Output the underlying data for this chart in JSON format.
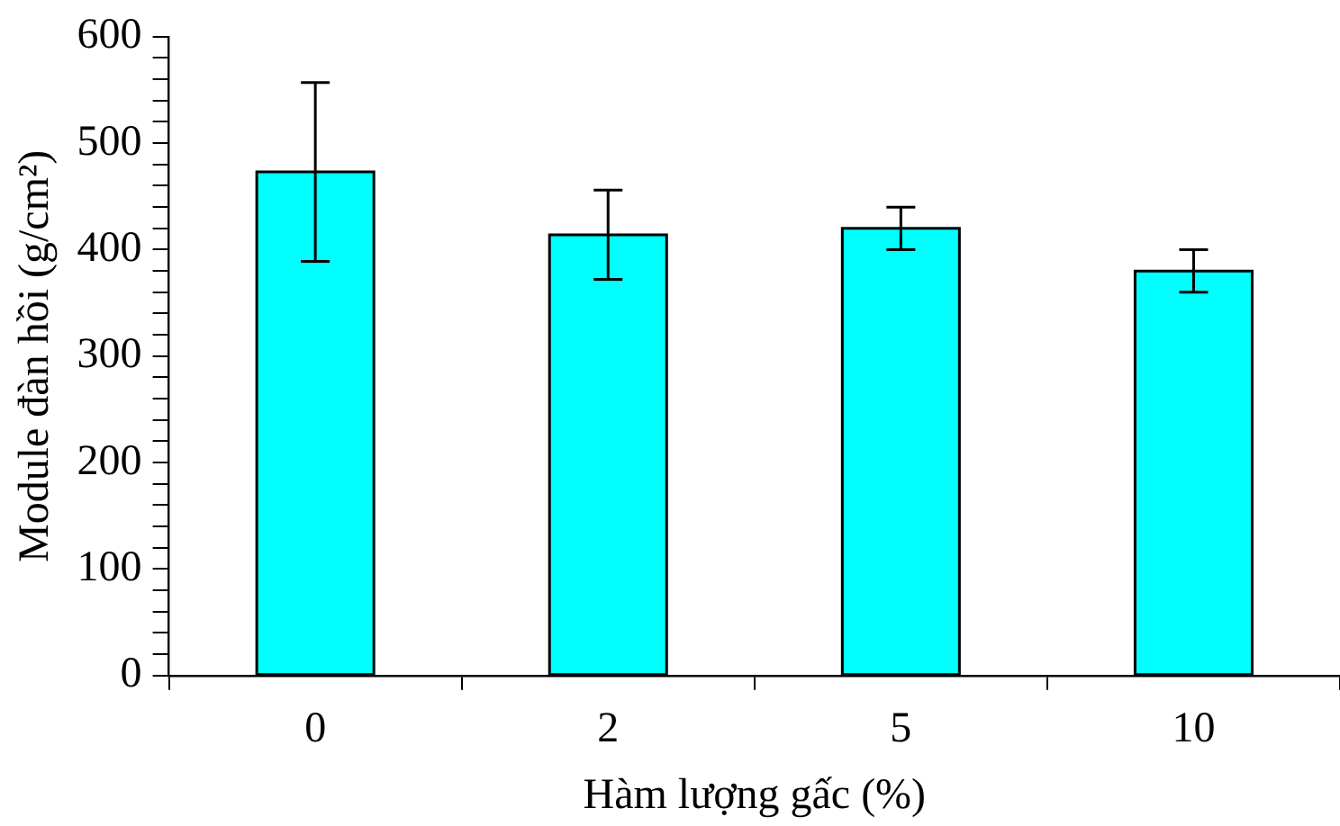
{
  "chart_data": {
    "type": "bar",
    "xlabel": "Hàm lượng gấc (%)",
    "ylabel": "Module đàn hồi (g/cm²)",
    "categories": [
      "0",
      "2",
      "5",
      "10"
    ],
    "values": [
      473,
      414,
      420,
      380
    ],
    "errors": [
      84,
      42,
      20,
      20
    ],
    "color": "#00ffff",
    "ylim": [
      0,
      600
    ],
    "yticks": [
      0,
      {
        "value": 20,
        "label": null
      },
      {
        "value": 40,
        "label": null
      },
      {
        "value": 60,
        "label": null
      },
      {
        "value": 80,
        "label": null
      },
      100,
      {
        "value": 120,
        "label": null
      },
      {
        "value": 140,
        "label": null
      },
      {
        "value": 160,
        "label": null
      },
      {
        "value": 180,
        "label": null
      },
      200,
      {
        "value": 220,
        "label": null
      },
      {
        "value": 240,
        "label": null
      },
      {
        "value": 260,
        "label": null
      },
      {
        "value": 280,
        "label": null
      },
      300,
      {
        "value": 320,
        "label": null
      },
      {
        "value": 340,
        "label": null
      },
      {
        "value": 360,
        "label": null
      },
      {
        "value": 380,
        "label": null
      },
      400,
      {
        "value": 420,
        "label": null
      },
      {
        "value": 440,
        "label": null
      },
      {
        "value": 460,
        "label": null
      },
      {
        "value": 480,
        "label": null
      },
      500,
      {
        "value": 520,
        "label": null
      },
      {
        "value": 540,
        "label": null
      },
      {
        "value": 560,
        "label": null
      },
      {
        "value": 580,
        "label": null
      },
      600
    ],
    "grid": false,
    "legend": false
  }
}
